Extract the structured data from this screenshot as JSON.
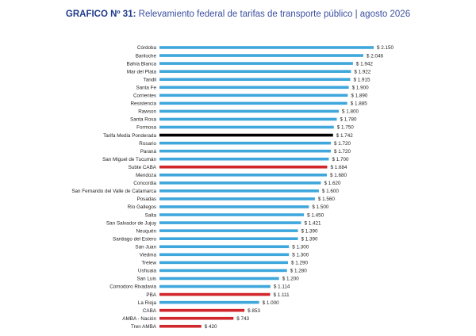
{
  "header": {
    "title_bold": "GRAFICO Nº 31:",
    "title_rest": "Relevamiento federal de tarifas de transporte público | agosto 2026"
  },
  "colors": {
    "default_bar": "#3fa7dc",
    "highlight_red": "#d0262c",
    "highlight_black": "#000000"
  },
  "chart_data": {
    "type": "bar",
    "orientation": "horizontal",
    "title": "Relevamiento federal de tarifas de transporte público | agosto 2026",
    "xlabel": "",
    "ylabel": "",
    "xlim": [
      0,
      2150
    ],
    "grid": false,
    "legend": "none",
    "value_prefix": "$ ",
    "categories": [
      "Córdoba",
      "Bariloche",
      "Bahía Blanca",
      "Mar del Plata",
      "Tandil",
      "Santa Fe",
      "Corrientes",
      "Resistencia",
      "Rawson",
      "Santa Rosa",
      "Formosa",
      "Tarifa Media Ponderada",
      "Rosario",
      "Paraná",
      "San Miguel de Tucumán",
      "Subte CABA",
      "Mendoza",
      "Concordia",
      "San Fernando del Valle de Catamarca",
      "Posadas",
      "Río Gallegos",
      "Salta",
      "San Salvador de Jujuy",
      "Neuquén",
      "Santiago del Estero",
      "San Juan",
      "Viedma",
      "Trelew",
      "Ushuaia",
      "San Luis",
      "Comodoro Rivadavia",
      "PBA",
      "La Rioja",
      "CABA",
      "AMBA - Nación",
      "Tren AMBA"
    ],
    "values": [
      2150,
      2046,
      1942,
      1922,
      1915,
      1900,
      1890,
      1885,
      1800,
      1780,
      1750,
      1742,
      1720,
      1720,
      1700,
      1684,
      1680,
      1620,
      1600,
      1560,
      1500,
      1450,
      1421,
      1390,
      1390,
      1300,
      1300,
      1290,
      1280,
      1200,
      1114,
      1111,
      1000,
      853,
      743,
      420
    ],
    "value_labels": [
      "$ 2.150",
      "$ 2.046",
      "$ 1.942",
      "$ 1.922",
      "$ 1.915",
      "$ 1.900",
      "$ 1.890",
      "$ 1.885",
      "$ 1.800",
      "$ 1.780",
      "$ 1.750",
      "$ 1.742",
      "$ 1.720",
      "$ 1.720",
      "$ 1.700",
      "$ 1.684",
      "$ 1.680",
      "$ 1.620",
      "$ 1.600",
      "$ 1.560",
      "$ 1.500",
      "$ 1.450",
      "$ 1.421",
      "$ 1.390",
      "$ 1.390",
      "$ 1.300",
      "$ 1.300",
      "$ 1.290",
      "$ 1.280",
      "$ 1.200",
      "$ 1.114",
      "$ 1.111",
      "$ 1.000",
      "$ 853",
      "$ 743",
      "$ 420"
    ],
    "highlight": {
      "Tarifa Media Ponderada": "black",
      "Subte CABA": "red",
      "PBA": "red",
      "CABA": "red",
      "AMBA - Nación": "red",
      "Tren AMBA": "red"
    }
  }
}
